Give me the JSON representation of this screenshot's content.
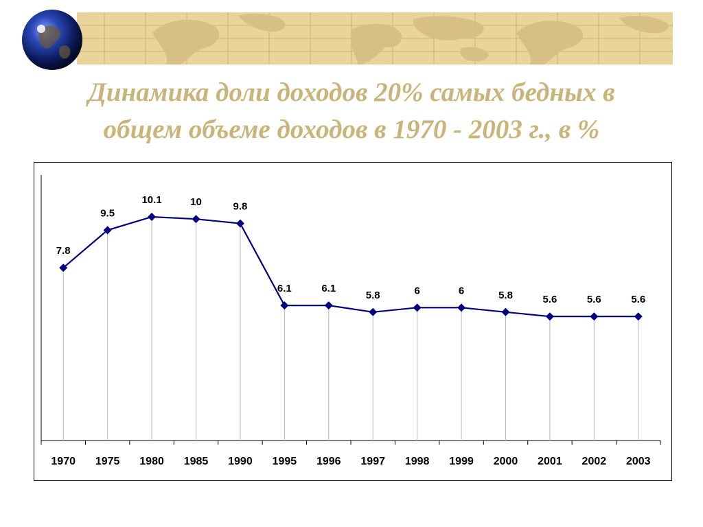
{
  "header": {
    "title_line1": "Динамика доли  доходов 20% самых бедных в",
    "title_line2": "общем объеме доходов в 1970 - 2003 г., в %",
    "title_color": "#c9b47a",
    "banner_color": "#e9d49a",
    "banner_icon": "world-map-icon",
    "logo_icon": "globe-icon"
  },
  "chart_data": {
    "type": "line",
    "title": "Динамика доли  доходов 20% самых бедных в общем объеме доходов в 1970 - 2003 г., в %",
    "xlabel": "",
    "ylabel": "",
    "categories": [
      "1970",
      "1975",
      "1980",
      "1985",
      "1990",
      "1995",
      "1996",
      "1997",
      "1998",
      "1999",
      "2000",
      "2001",
      "2002",
      "2003"
    ],
    "series": [
      {
        "values": [
          7.8,
          9.5,
          10.1,
          10,
          9.8,
          6.1,
          6.1,
          5.8,
          6,
          6,
          5.8,
          5.6,
          5.6,
          5.6
        ],
        "color": "#000080"
      }
    ],
    "ylim": [
      0,
      11
    ],
    "data_labels": [
      "7.8",
      "9.5",
      "10.1",
      "10",
      "9.8",
      "6.1",
      "6.1",
      "5.8",
      "6",
      "6",
      "5.8",
      "5.6",
      "5.6",
      "5.6"
    ],
    "drop_lines": true,
    "grid": false,
    "legend": "none",
    "marker": "diamond"
  }
}
